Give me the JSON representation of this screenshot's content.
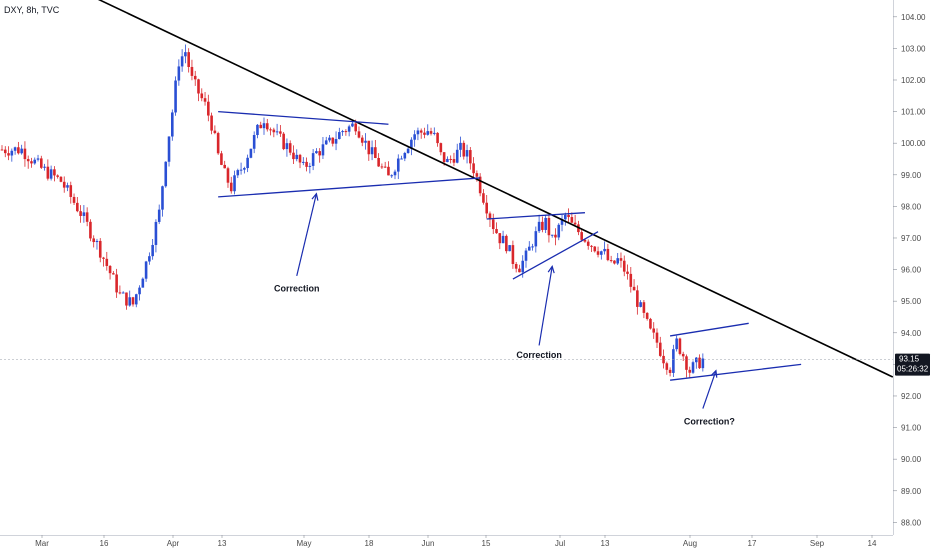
{
  "chart_data": {
    "type": "candlestick",
    "symbol_header": "DXY, 8h, TVC",
    "y_axis": {
      "range": [
        87.6,
        104.5
      ],
      "ticks": [
        "104.00",
        "103.00",
        "102.00",
        "101.00",
        "100.00",
        "99.00",
        "98.00",
        "97.00",
        "96.00",
        "95.00",
        "94.00",
        "93.00",
        "92.00",
        "91.00",
        "90.00",
        "89.00",
        "88.00"
      ]
    },
    "x_axis": {
      "labels": [
        "Mar",
        "16",
        "Apr",
        "13",
        "May",
        "18",
        "Jun",
        "15",
        "Jul",
        "13",
        "Aug",
        "17",
        "Sep",
        "14"
      ]
    },
    "last_price": "93.15",
    "countdown": "05:26:32",
    "colors": {
      "up": "#2a4fd4",
      "down": "#d9262b",
      "trendline": "#000000",
      "channel": "#1a2db0",
      "price_badge": "#131722"
    },
    "price_path": [
      [
        0,
        99.8
      ],
      [
        3,
        99.8
      ],
      [
        6,
        99.2
      ],
      [
        9,
        98.8
      ],
      [
        12,
        97.8
      ],
      [
        15,
        96.6
      ],
      [
        18,
        95.2
      ],
      [
        20,
        94.9
      ],
      [
        22,
        96.2
      ],
      [
        24,
        97.8
      ],
      [
        25,
        99.6
      ],
      [
        26,
        101.0
      ],
      [
        27,
        102.6
      ],
      [
        28,
        102.9
      ],
      [
        29,
        102.0
      ],
      [
        30,
        101.6
      ],
      [
        31,
        101.2
      ],
      [
        32,
        100.6
      ],
      [
        33,
        99.6
      ],
      [
        34,
        99.0
      ],
      [
        35,
        98.6
      ],
      [
        37,
        99.4
      ],
      [
        39,
        100.4
      ],
      [
        40,
        100.8
      ],
      [
        42,
        100.2
      ],
      [
        44,
        99.8
      ],
      [
        46,
        99.2
      ],
      [
        48,
        99.7
      ],
      [
        50,
        100.0
      ],
      [
        52,
        100.4
      ],
      [
        54,
        100.6
      ],
      [
        56,
        99.8
      ],
      [
        58,
        99.2
      ],
      [
        59,
        98.9
      ],
      [
        61,
        99.7
      ],
      [
        63,
        100.3
      ],
      [
        65,
        100.4
      ],
      [
        66,
        100.2
      ],
      [
        67,
        99.6
      ],
      [
        68,
        99.4
      ],
      [
        70,
        99.8
      ],
      [
        71,
        99.6
      ],
      [
        72,
        99.2
      ],
      [
        73,
        98.6
      ],
      [
        74,
        98.0
      ],
      [
        75,
        97.4
      ],
      [
        76,
        97.0
      ],
      [
        77,
        96.8
      ],
      [
        78,
        96.3
      ],
      [
        79,
        96.1
      ],
      [
        80,
        96.4
      ],
      [
        81,
        96.9
      ],
      [
        82,
        97.3
      ],
      [
        83,
        97.5
      ],
      [
        84,
        96.9
      ],
      [
        85,
        97.3
      ],
      [
        86,
        97.7
      ],
      [
        87,
        97.4
      ],
      [
        88,
        97.2
      ],
      [
        89,
        97.0
      ],
      [
        90,
        96.8
      ],
      [
        92,
        96.5
      ],
      [
        93,
        96.1
      ],
      [
        94,
        96.3
      ],
      [
        95,
        96.0
      ],
      [
        96,
        95.5
      ],
      [
        97,
        95.0
      ],
      [
        98,
        94.5
      ],
      [
        99,
        94.0
      ],
      [
        100,
        93.7
      ],
      [
        101,
        93.2
      ],
      [
        102,
        92.9
      ],
      [
        103,
        93.7
      ],
      [
        104,
        93.3
      ],
      [
        105,
        92.8
      ],
      [
        106,
        93.0
      ],
      [
        107,
        93.15
      ]
    ],
    "lines": [
      {
        "kind": "trendline",
        "from": [
          -2,
          106.2
        ],
        "to": [
          136,
          92.6
        ]
      },
      {
        "kind": "channel",
        "from": [
          33,
          101.0
        ],
        "to": [
          59,
          100.6
        ]
      },
      {
        "kind": "channel",
        "from": [
          33,
          98.3
        ],
        "to": [
          73,
          98.9
        ]
      },
      {
        "kind": "channel",
        "from": [
          74,
          97.6
        ],
        "to": [
          89,
          97.8
        ]
      },
      {
        "kind": "channel",
        "from": [
          78,
          95.7
        ],
        "to": [
          91,
          97.2
        ]
      },
      {
        "kind": "channel",
        "from": [
          102,
          93.9
        ],
        "to": [
          114,
          94.3
        ]
      },
      {
        "kind": "channel",
        "from": [
          102,
          92.5
        ],
        "to": [
          122,
          93.0
        ]
      }
    ],
    "annotations": [
      {
        "text": "Correction",
        "at": [
          45,
          95.3
        ],
        "arrow_from": [
          45,
          95.8
        ],
        "arrow_to": [
          48,
          98.4
        ]
      },
      {
        "text": "Correction",
        "at": [
          82,
          93.2
        ],
        "arrow_from": [
          82,
          93.6
        ],
        "arrow_to": [
          84,
          96.1
        ]
      },
      {
        "text": "Correction?",
        "at": [
          108,
          91.1
        ],
        "arrow_from": [
          107,
          91.6
        ],
        "arrow_to": [
          109,
          92.8
        ]
      }
    ]
  }
}
